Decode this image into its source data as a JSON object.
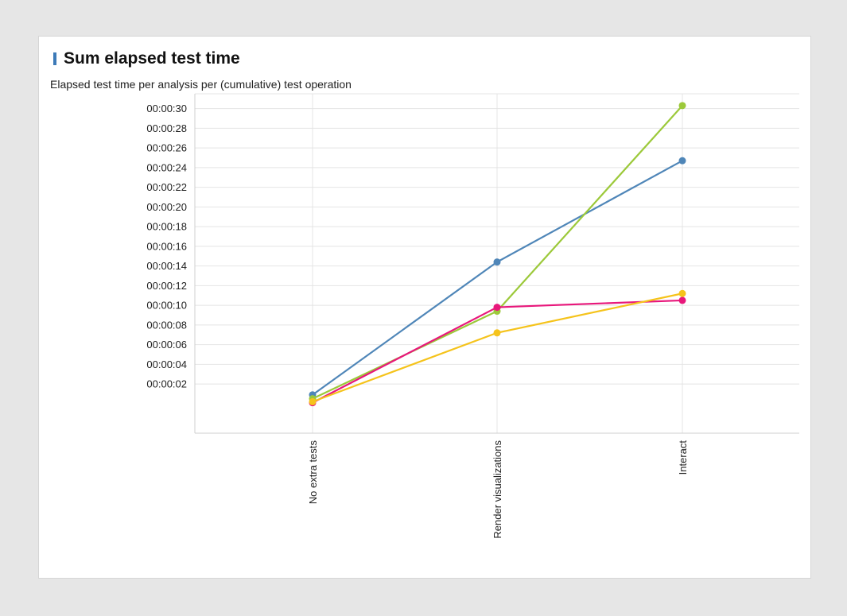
{
  "panel": {
    "title": "Sum elapsed test time",
    "subtitle": "Elapsed test time per analysis per (cumulative) test operation"
  },
  "chart_data": {
    "type": "line",
    "categories": [
      "No extra tests",
      "Render visualizations",
      "Interact"
    ],
    "y_unit": "seconds",
    "yticks": [
      2,
      4,
      6,
      8,
      10,
      12,
      14,
      16,
      18,
      20,
      22,
      24,
      26,
      28,
      30
    ],
    "ytick_labels": [
      "00:00:02",
      "00:00:04",
      "00:00:06",
      "00:00:08",
      "00:00:10",
      "00:00:12",
      "00:00:14",
      "00:00:16",
      "00:00:18",
      "00:00:20",
      "00:00:22",
      "00:00:24",
      "00:00:26",
      "00:00:28",
      "00:00:30"
    ],
    "ylim": [
      -3,
      31.5
    ],
    "grid": true,
    "series": [
      {
        "color": "#4f86b8",
        "values": [
          0.9,
          14.4,
          24.7
        ]
      },
      {
        "color": "#9cc93a",
        "values": [
          0.5,
          9.4,
          30.3
        ]
      },
      {
        "color": "#e8177b",
        "values": [
          0.1,
          9.8,
          10.5
        ]
      },
      {
        "color": "#f5c31b",
        "values": [
          0.2,
          7.2,
          11.2
        ]
      }
    ]
  }
}
